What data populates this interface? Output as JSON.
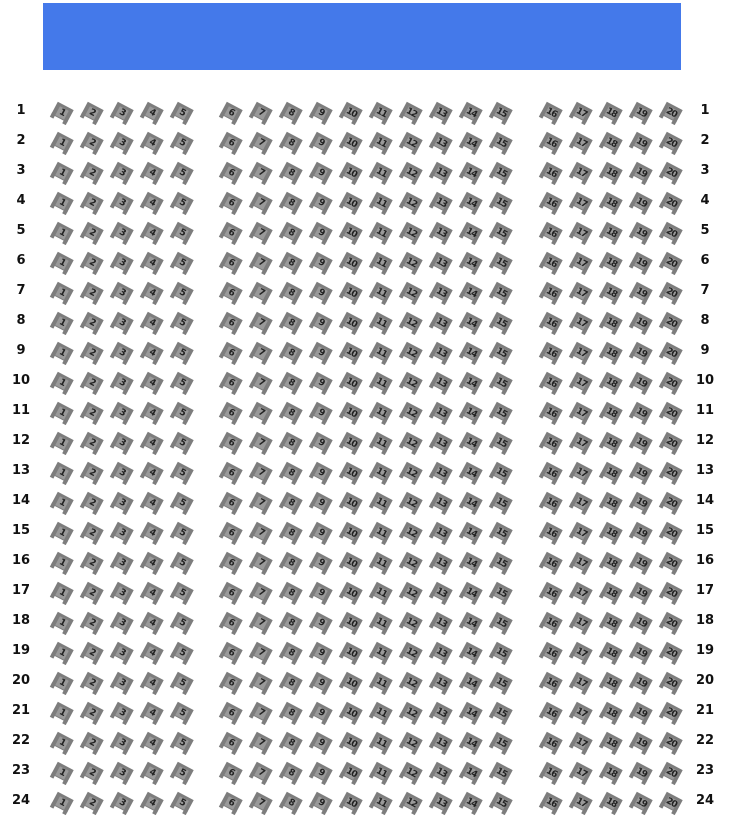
{
  "screen": {
    "color": "#4479ea"
  },
  "seat_color": "#7d7d7d",
  "rows": [
    "1",
    "2",
    "3",
    "4",
    "5",
    "6",
    "7",
    "8",
    "9",
    "10",
    "11",
    "12",
    "13",
    "14",
    "15",
    "16",
    "17",
    "18",
    "19",
    "20",
    "21",
    "22",
    "23",
    "24"
  ],
  "seats": [
    "1",
    "2",
    "3",
    "4",
    "5",
    "6",
    "7",
    "8",
    "9",
    "10",
    "11",
    "12",
    "13",
    "14",
    "15",
    "16",
    "17",
    "18",
    "19",
    "20"
  ]
}
